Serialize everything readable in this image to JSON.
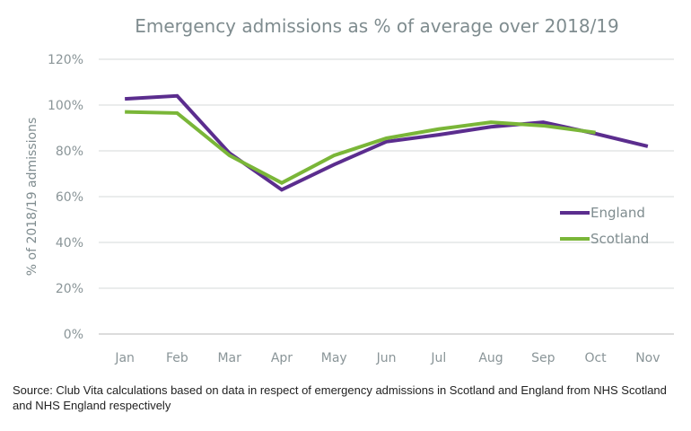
{
  "chart_data": {
    "type": "line",
    "title": "Emergency admissions as % of average over 2018/19",
    "xlabel": "",
    "ylabel": "% of 2018/19 admissions",
    "categories": [
      "Jan",
      "Feb",
      "Mar",
      "Apr",
      "May",
      "Jun",
      "Jul",
      "Aug",
      "Sep",
      "Oct",
      "Nov"
    ],
    "ylim": [
      0,
      120
    ],
    "yticks": [
      0,
      20,
      40,
      60,
      80,
      100,
      120
    ],
    "ytick_labels": [
      "0%",
      "20%",
      "40%",
      "60%",
      "80%",
      "100%",
      "120%"
    ],
    "grid": true,
    "legend_position": "right",
    "series": [
      {
        "name": "England",
        "color": "#5b2d8e",
        "values": [
          102.7,
          104,
          79,
          63,
          74,
          84,
          87,
          90.5,
          92.5,
          87.5,
          82
        ]
      },
      {
        "name": "Scotland",
        "color": "#7ab638",
        "values": [
          97,
          96.5,
          78,
          66,
          78,
          85.5,
          89.5,
          92.5,
          91,
          88,
          null
        ]
      }
    ]
  },
  "source_note": "Source: Club Vita calculations based on data in respect of emergency admissions in Scotland and England from NHS Scotland and NHS England respectively"
}
